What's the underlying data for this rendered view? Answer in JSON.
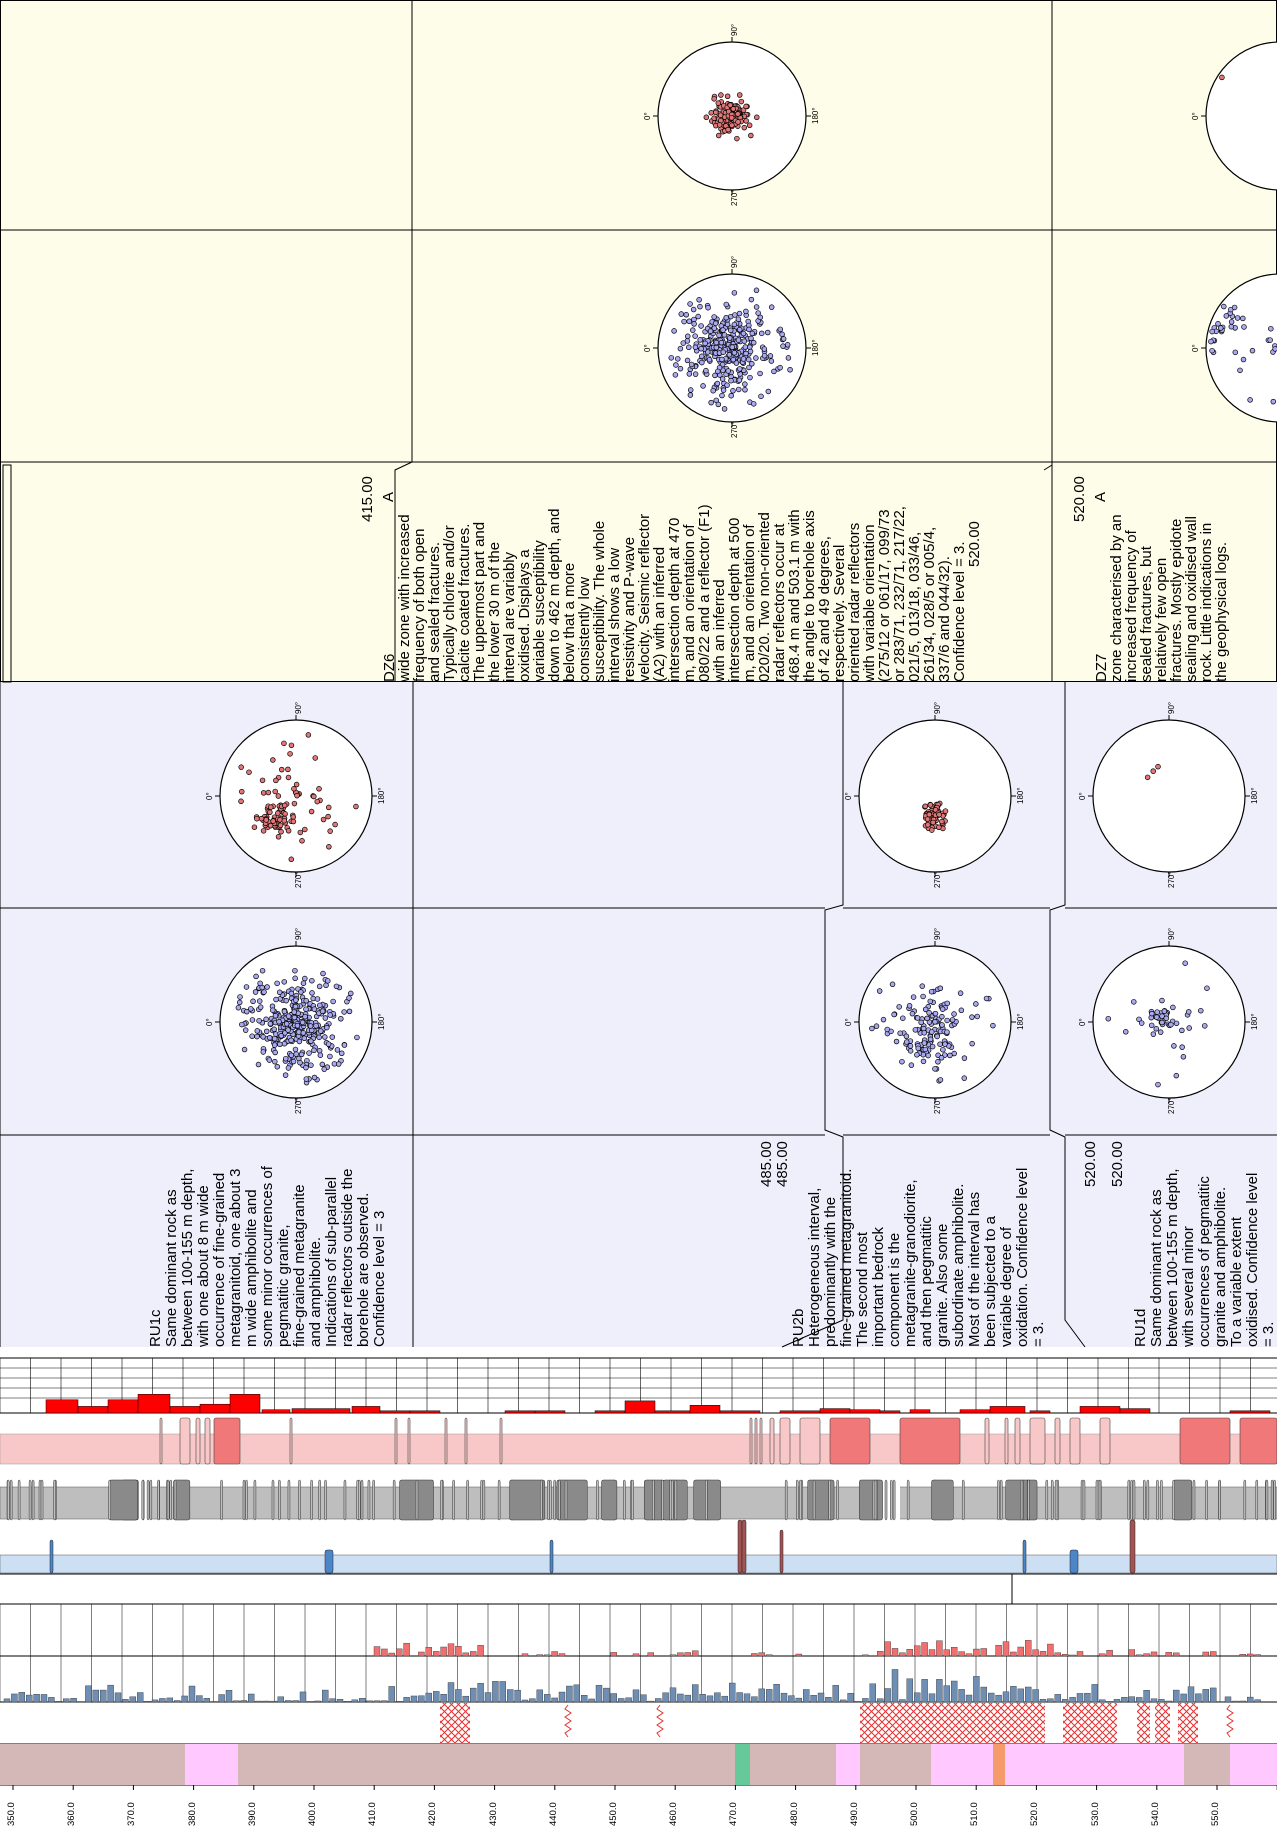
{
  "depth_axis": {
    "labels": [
      "350.0",
      "360.0",
      "370.0",
      "380.0",
      "390.0",
      "400.0",
      "410.0",
      "420.0",
      "430.0",
      "440.0",
      "450.0",
      "460.0",
      "470.0",
      "480.0",
      "490.0",
      "500.0",
      "510.0",
      "520.0",
      "530.0",
      "540.0",
      "550.0"
    ]
  },
  "colors": {
    "zone_panel": "#fdfde9",
    "unit_panel": "#efeffc",
    "pole_blue": "#a9a9f0",
    "pole_red": "#e07878",
    "rock_base": "#d4b8b8",
    "rock_pink": "#ffc8ff",
    "rock_green": "#66c999",
    "rock_orange": "#f59a6a",
    "hatch": "#e83030",
    "hist_blue": "#6e8eb4",
    "hist_red": "#f07070",
    "light_blue": "#cde0f3",
    "grey": "#bebebe",
    "pink": "#f8c8c8",
    "red": "#ff0000"
  },
  "stereonet_labels": [
    "0°",
    "90°",
    "180°",
    "270°"
  ],
  "units": [
    {
      "id": "RU1c",
      "lines": [
        "RU1c",
        "Same dominant rock as",
        "between 100-155 m depth,",
        "with one about 8 m wide",
        "occurrence of fine-grained",
        "metagranitoid, one about 3",
        "m wide amphibolite and",
        "some minor occurrences of",
        "pegmatitic granite,",
        "fine-grained metagranite",
        "and amphibolite.",
        "Indications of sub-parallel",
        "radar reflectors outside the",
        "borehole are observed.",
        "Confidence level = 3"
      ]
    },
    {
      "id": "RU2b",
      "lines": [
        "RU2b",
        "Heterogeneous interval,",
        "predominantly with the",
        "fine-grained metagranitoid.",
        "The second most",
        "important bedrock",
        "component is the",
        "metagranite-granodiorite,",
        "and then pegmatitic",
        "granite. Also some",
        "subordinate amphibolite.",
        "Most of the interval has",
        "been subjected to a",
        "variable degree of",
        "oxidation. Confidence level",
        "= 3."
      ],
      "top": [
        "485.00",
        "485.00"
      ],
      "bottom": [
        "520.00",
        "520.00"
      ]
    },
    {
      "id": "RU1d",
      "lines": [
        "RU1d",
        "Same dominant rock as",
        "between 100-155 m depth,",
        "with several minor",
        "occurrences of pegmatitic",
        "granite and amphibolite.",
        "To a variable extent",
        "oxidised. Confidence level",
        "= 3."
      ]
    }
  ],
  "zones": [
    {
      "id": "DZ6",
      "top": "415.00",
      "bottom": "520.00",
      "class": "A",
      "lines": [
        "DZ6",
        "wide zone with increased",
        "frequency of both open",
        "and sealed fractures.",
        "Typically chlorite and/or",
        "calcite coated fractures.",
        "The uppermost part and",
        "the lower 30 m of the",
        "interval are variably",
        "oxidised. Displays a",
        "variable susceptibility",
        "down to 462 m depth, and",
        "below that a more",
        "consistently low",
        "susceptibility. The whole",
        "interval shows a low",
        "resistivity and P-wave",
        "velocity. Seismic reflector",
        "(A2) with an inferred",
        "intersection depth at 470",
        "m, and an orientation of",
        "080/22 and a reflector (F1)",
        "with an inferred",
        "intersection depth at 500",
        "m, and an orientation of",
        "020/20. Two non-oriented",
        "radar reflectors occur at",
        "468.4 m and 503.1 m with",
        "the angle to borehole axis",
        "of 42 and 49 degrees,",
        "respectively. Several",
        "oriented radar reflectors",
        "with variable orientation",
        "(275/12 or 061/17, 099/73",
        "or 283/71, 232/71, 217/22,",
        "021/5, 013/18, 033/46,",
        "261/34, 028/5 or 005/4,",
        "337/6 and 044/32).",
        "Confidence level = 3.",
        "520.00"
      ]
    },
    {
      "id": "DZ7",
      "top": "520.00",
      "class": "A",
      "lines": [
        "DZ7",
        "zone characterised by an",
        "increased frequency of",
        "sealed fractures, but",
        "relatively few open",
        "fractures. Mostly epidote",
        "sealing and oxidised wall",
        "rock. Little indications in",
        "the geophysical logs."
      ]
    }
  ]
}
